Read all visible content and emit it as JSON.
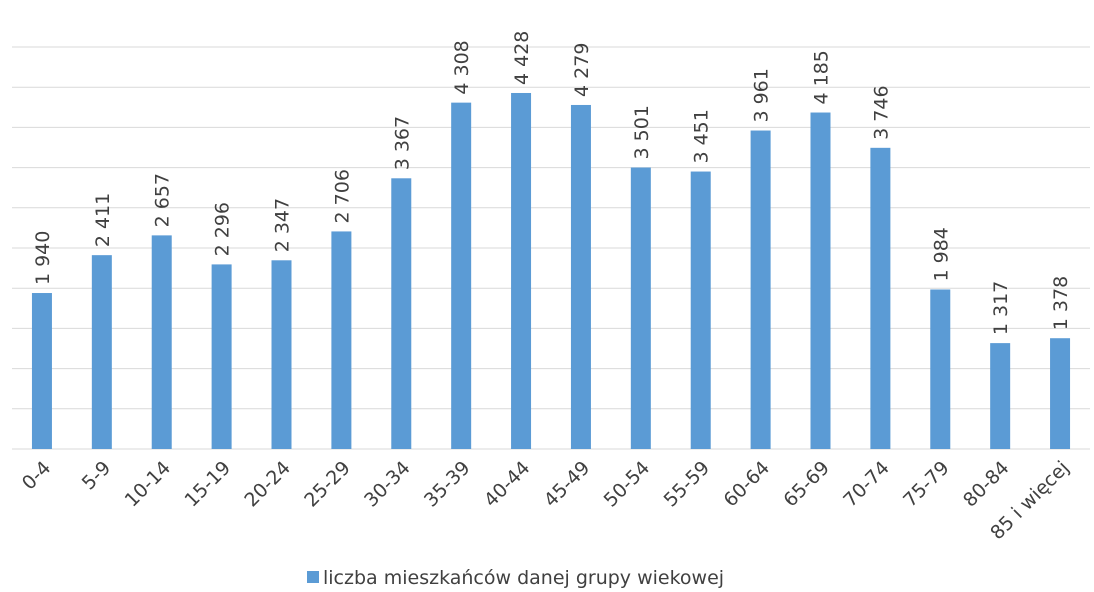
{
  "chart_data": {
    "type": "bar",
    "categories": [
      "0-4",
      "5-9",
      "10-14",
      "15-19",
      "20-24",
      "25-29",
      "30-34",
      "35-39",
      "40-44",
      "45-49",
      "50-54",
      "55-59",
      "60-64",
      "65-69",
      "70-74",
      "75-79",
      "80-84",
      "85 i więcej"
    ],
    "series": [
      {
        "name": "liczba mieszkańców danej grupy wiekowej",
        "color": "#5b9bd5",
        "values": [
          1940,
          2411,
          2657,
          2296,
          2347,
          2706,
          3367,
          4308,
          4428,
          4279,
          3501,
          3451,
          3961,
          4185,
          3746,
          1984,
          1317,
          1378
        ],
        "value_labels": [
          "1 940",
          "2 411",
          "2 657",
          "2 296",
          "2 347",
          "2 706",
          "3 367",
          "4 308",
          "4 428",
          "4 279",
          "3 501",
          "3 451",
          "3 961",
          "4 185",
          "3 746",
          "1 984",
          "1 317",
          "1 378"
        ]
      }
    ],
    "ylim": [
      0,
      5000
    ],
    "yticks": [
      0,
      500,
      1000,
      1500,
      2000,
      2500,
      3000,
      3500,
      4000,
      4500,
      5000
    ],
    "grid": true,
    "legend": "bottom"
  }
}
